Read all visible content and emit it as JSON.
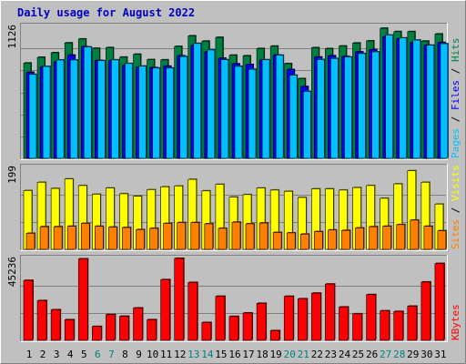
{
  "chart_data": {
    "type": "bar",
    "title": "Daily usage for August 2022",
    "categories": [
      "1",
      "2",
      "3",
      "4",
      "5",
      "6",
      "7",
      "8",
      "9",
      "10",
      "11",
      "12",
      "13",
      "14",
      "15",
      "16",
      "17",
      "18",
      "19",
      "20",
      "21",
      "22",
      "23",
      "24",
      "25",
      "26",
      "27",
      "28",
      "29",
      "30",
      "31"
    ],
    "weekend_days": [
      6,
      7,
      13,
      14,
      20,
      21,
      27,
      28
    ],
    "colors": {
      "hits": "#008040",
      "files": "#0000ff",
      "pages": "#00c0ff",
      "visits": "#ffff00",
      "sites": "#ff8000",
      "kbytes": "#ff0000",
      "title": "#0000c0",
      "weekend": "#008080",
      "background": "#c0c0c0"
    },
    "panels": [
      {
        "id": "usage",
        "ymax": 1126,
        "ymax_label": "1126",
        "legend": [
          "Pages",
          "Files",
          "Hits"
        ],
        "series": [
          {
            "name": "Hits",
            "values": [
              813,
              862,
              901,
              985,
              1018,
              939,
              945,
              863,
              888,
              842,
              840,
              955,
              1045,
              1000,
              1032,
              880,
              875,
              937,
              957,
              808,
              680,
              944,
              936,
              958,
              984,
              1002,
              1110,
              1081,
              1081,
              1000,
              1061
            ]
          },
          {
            "name": "Files",
            "values": [
              733,
              780,
              822,
              880,
              952,
              836,
              834,
              793,
              777,
              774,
              786,
              875,
              964,
              908,
              854,
              806,
              800,
              838,
              881,
              757,
              612,
              864,
              875,
              869,
              908,
              927,
              1038,
              1019,
              988,
              965,
              988
            ]
          },
          {
            "name": "Pages",
            "values": [
              716,
              784,
              839,
              839,
              950,
              833,
              840,
              809,
              787,
              770,
              770,
              868,
              980,
              925,
              841,
              785,
              760,
              841,
              880,
              709,
              571,
              843,
              852,
              864,
              894,
              909,
              1052,
              1027,
              1009,
              965,
              978
            ]
          }
        ]
      },
      {
        "id": "visits",
        "ymax": 199,
        "ymax_label": "199",
        "legend": [
          "Sites",
          "Visits"
        ],
        "series": [
          {
            "name": "Visits",
            "values": [
              143,
              163,
              148,
              171,
              155,
              134,
              149,
              135,
              129,
              145,
              152,
              154,
              170,
              142,
              158,
              127,
              133,
              149,
              144,
              141,
              126,
              147,
              147,
              144,
              150,
              155,
              124,
              159,
              191,
              163,
              110
            ]
          },
          {
            "name": "Sites",
            "values": [
              39,
              55,
              55,
              56,
              63,
              56,
              54,
              53,
              48,
              51,
              63,
              65,
              65,
              62,
              51,
              66,
              62,
              64,
              41,
              40,
              37,
              43,
              47,
              46,
              52,
              55,
              56,
              60,
              71,
              56,
              45
            ]
          }
        ]
      },
      {
        "id": "kbytes",
        "ymax": 45236,
        "ymax_label": "45236",
        "legend": [
          "KBytes"
        ],
        "series": [
          {
            "name": "KBytes",
            "values": [
              33090,
              21920,
              16870,
              11360,
              44990,
              7650,
              14210,
              13270,
              17870,
              11380,
              33510,
              45236,
              31950,
              9850,
              24320,
              13160,
              15090,
              20420,
              5340,
              24290,
              22930,
              26040,
              31070,
              18400,
              14640,
              25240,
              16290,
              15940,
              18850,
              32200,
              42430
            ]
          }
        ]
      }
    ]
  }
}
